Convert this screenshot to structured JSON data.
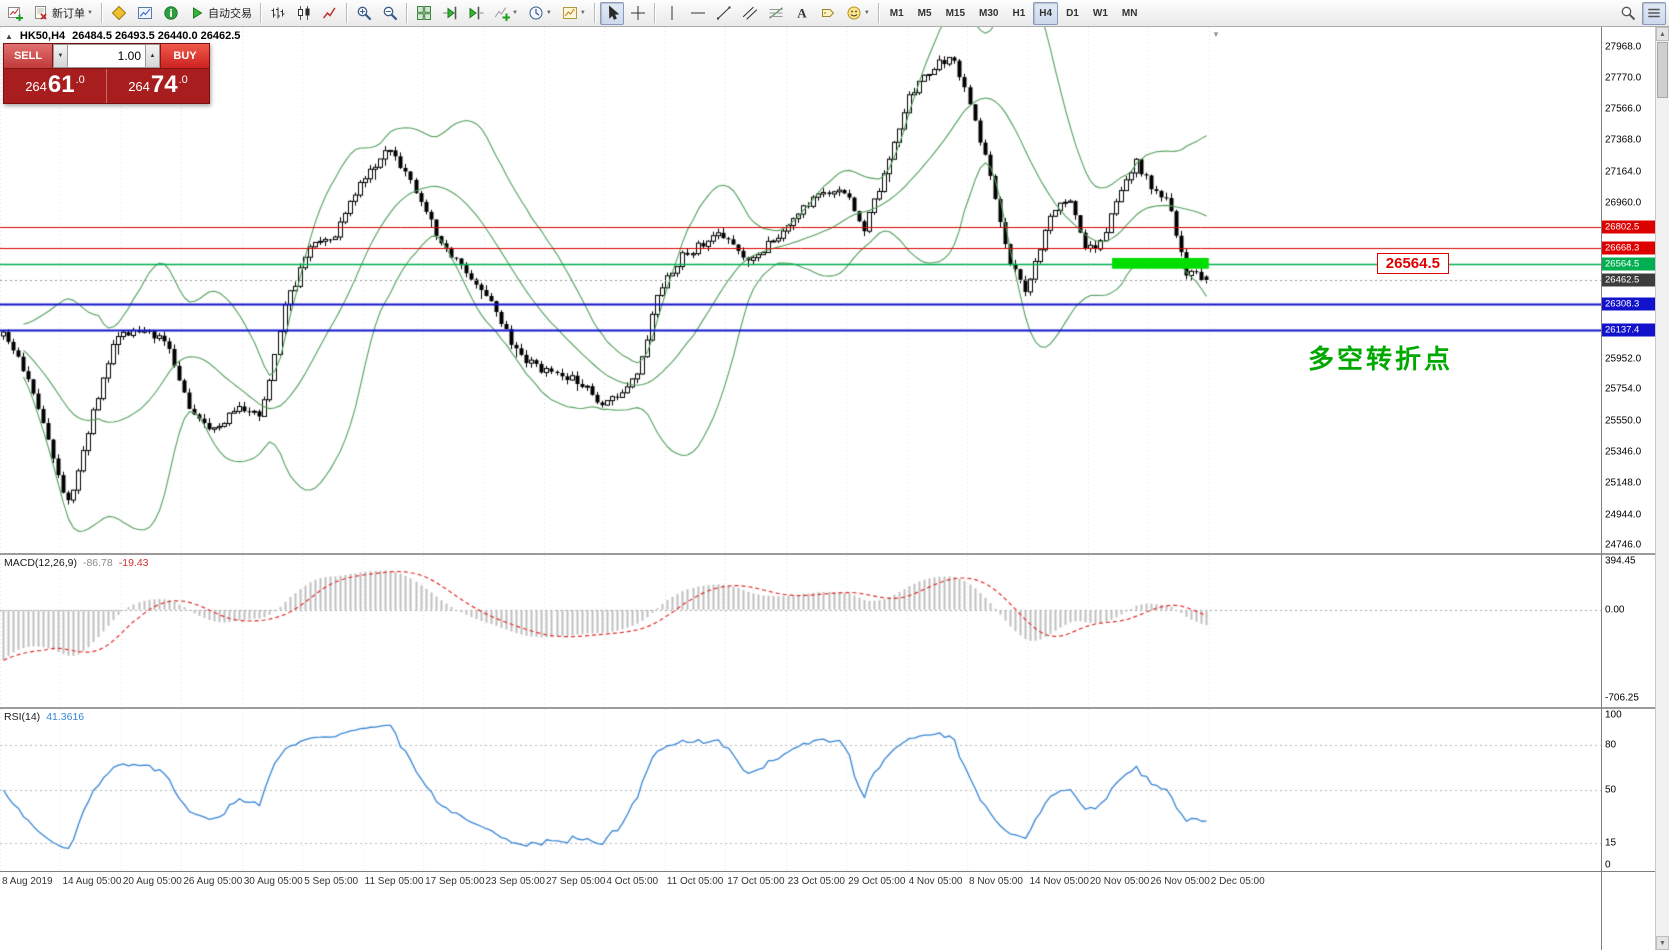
{
  "colors": {
    "hline_red": "#dd0000",
    "hline_green": "#00b050",
    "hline_blue": "#1212cc",
    "current_tag": "#3c3c3c",
    "bollinger": "#55a05f",
    "highlight": "#00de00",
    "macd_hist": "#bfbfbf",
    "macd_signal": "#e03030",
    "rsi_line": "#3a86d4",
    "candle_up": "#ffffff",
    "candle_down": "#000000",
    "candle_outline": "#000000",
    "callout": "#e00000",
    "annotation_green": "#00a800"
  },
  "toolbar": {
    "timeframes": [
      "M1",
      "M5",
      "M15",
      "M30",
      "H1",
      "H4",
      "D1",
      "W1",
      "MN"
    ],
    "active_timeframe": "H4",
    "items": [
      {
        "type": "icon",
        "name": "new-chart-button",
        "icon": "newchart"
      },
      {
        "type": "button",
        "name": "new-order-button",
        "icon": "neworder",
        "label": "新订单",
        "dropdown": true
      },
      {
        "type": "sep"
      },
      {
        "type": "icon",
        "name": "profiles-button",
        "icon": "profiles"
      },
      {
        "type": "icon",
        "name": "market-watch-button",
        "icon": "marketwatch"
      },
      {
        "type": "icon",
        "name": "data-window-button",
        "icon": "info"
      },
      {
        "type": "button",
        "name": "autotrading-button",
        "icon": "play",
        "label": "自动交易"
      },
      {
        "type": "sep"
      },
      {
        "type": "icon",
        "name": "bar-chart-button",
        "icon": "bars"
      },
      {
        "type": "icon",
        "name": "candlestick-chart-button",
        "icon": "candles"
      },
      {
        "type": "icon",
        "name": "line-chart-button",
        "icon": "linechart"
      },
      {
        "type": "sep"
      },
      {
        "type": "icon",
        "name": "zoom-in-button",
        "icon": "zoomin"
      },
      {
        "type": "icon",
        "name": "zoom-out-button",
        "icon": "zoomout"
      },
      {
        "type": "sep"
      },
      {
        "type": "icon",
        "name": "tile-windows-button",
        "icon": "tile"
      },
      {
        "type": "icon",
        "name": "auto-scroll-button",
        "icon": "autoscroll"
      },
      {
        "type": "icon",
        "name": "chart-shift-button",
        "icon": "shift"
      },
      {
        "type": "icon",
        "name": "indicators-button",
        "icon": "indicators",
        "dropdown": true
      },
      {
        "type": "icon",
        "name": "periods-button",
        "icon": "clock",
        "dropdown": true
      },
      {
        "type": "icon",
        "name": "templates-button",
        "icon": "template",
        "dropdown": true
      },
      {
        "type": "sep"
      },
      {
        "type": "icon",
        "name": "cursor-tool-button",
        "icon": "cursor",
        "active": true
      },
      {
        "type": "icon",
        "name": "crosshair-tool-button",
        "icon": "crosshair"
      },
      {
        "type": "sep"
      },
      {
        "type": "icon",
        "name": "vertical-line-tool-button",
        "icon": "vline"
      },
      {
        "type": "icon",
        "name": "horizontal-line-tool-button",
        "icon": "hline"
      },
      {
        "type": "icon",
        "name": "trendline-tool-button",
        "icon": "trend"
      },
      {
        "type": "icon",
        "name": "channel-tool-button",
        "icon": "channel"
      },
      {
        "type": "icon",
        "name": "fibonacci-tool-button",
        "icon": "fibo"
      },
      {
        "type": "icon",
        "name": "text-tool-button",
        "icon": "text"
      },
      {
        "type": "icon",
        "name": "label-tool-button",
        "icon": "label"
      },
      {
        "type": "icon",
        "name": "shapes-tool-button",
        "icon": "shapes",
        "dropdown": true
      },
      {
        "type": "sep"
      }
    ],
    "right_items": [
      {
        "type": "icon",
        "name": "search-button",
        "icon": "search"
      },
      {
        "type": "icon",
        "name": "customize-toolbar-button",
        "icon": "menu",
        "active": true
      }
    ]
  },
  "one_click": {
    "sell_label": "SELL",
    "buy_label": "BUY",
    "volume": "1.00",
    "sell_price": {
      "full": "26461.0",
      "prefix": "264",
      "big": "61",
      "suffix": ".0"
    },
    "buy_price": {
      "full": "26474.0",
      "prefix": "264",
      "big": "74",
      "suffix": ".0"
    }
  },
  "price_pane": {
    "header_symbol": "HK50,H4",
    "header_ohlc": "26484.5 26493.5 26440.0 26462.5",
    "callout": "26564.5",
    "annotation": "多空转折点"
  },
  "time_axis": [
    "8 Aug 2019",
    "14 Aug 05:00",
    "20 Aug 05:00",
    "26 Aug 05:00",
    "30 Aug 05:00",
    "5 Sep 05:00",
    "11 Sep 05:00",
    "17 Sep 05:00",
    "23 Sep 05:00",
    "27 Sep 05:00",
    "4 Oct 05:00",
    "11 Oct 05:00",
    "17 Oct 05:00",
    "23 Oct 05:00",
    "29 Oct 05:00",
    "4 Nov 05:00",
    "8 Nov 05:00",
    "14 Nov 05:00",
    "20 Nov 05:00",
    "26 Nov 05:00",
    "2 Dec 05:00"
  ],
  "chart_data": [
    {
      "type": "candlestick",
      "title": "HK50,H4",
      "open": 26484.5,
      "high": 26493.5,
      "low": 26440.0,
      "close": 26462.5,
      "y_ticks": [
        "27968.0",
        "27770.0",
        "27566.0",
        "27368.0",
        "27164.0",
        "26960.0",
        "25952.0",
        "25754.0",
        "25550.0",
        "25346.0",
        "25148.0",
        "24944.0",
        "24746.0"
      ],
      "y_range": [
        24695,
        28100
      ],
      "plot_width_frac": 0.755,
      "candle_count": 240,
      "overlays": [
        "Bollinger Bands(20,2) green"
      ],
      "price_anchors": [
        [
          0.0,
          26100
        ],
        [
          0.02,
          25850
        ],
        [
          0.04,
          25350
        ],
        [
          0.055,
          25000
        ],
        [
          0.075,
          25600
        ],
        [
          0.095,
          26100
        ],
        [
          0.115,
          26150
        ],
        [
          0.135,
          26050
        ],
        [
          0.155,
          25650
        ],
        [
          0.175,
          25480
        ],
        [
          0.195,
          25650
        ],
        [
          0.215,
          25580
        ],
        [
          0.235,
          26300
        ],
        [
          0.255,
          26680
        ],
        [
          0.275,
          26730
        ],
        [
          0.295,
          27060
        ],
        [
          0.32,
          27330
        ],
        [
          0.34,
          27100
        ],
        [
          0.36,
          26760
        ],
        [
          0.385,
          26500
        ],
        [
          0.405,
          26320
        ],
        [
          0.43,
          25960
        ],
        [
          0.455,
          25860
        ],
        [
          0.48,
          25800
        ],
        [
          0.5,
          25650
        ],
        [
          0.528,
          25850
        ],
        [
          0.545,
          26380
        ],
        [
          0.565,
          26620
        ],
        [
          0.595,
          26760
        ],
        [
          0.62,
          26560
        ],
        [
          0.65,
          26800
        ],
        [
          0.675,
          27000
        ],
        [
          0.698,
          27060
        ],
        [
          0.715,
          26790
        ],
        [
          0.735,
          27180
        ],
        [
          0.752,
          27640
        ],
        [
          0.775,
          27850
        ],
        [
          0.79,
          27900
        ],
        [
          0.806,
          27520
        ],
        [
          0.82,
          27160
        ],
        [
          0.835,
          26620
        ],
        [
          0.85,
          26360
        ],
        [
          0.87,
          26880
        ],
        [
          0.887,
          26990
        ],
        [
          0.9,
          26660
        ],
        [
          0.912,
          26700
        ],
        [
          0.928,
          27040
        ],
        [
          0.941,
          27230
        ],
        [
          0.954,
          27060
        ],
        [
          0.97,
          26940
        ],
        [
          0.982,
          26520
        ],
        [
          1.0,
          26462.5
        ]
      ],
      "hlines": [
        {
          "price": 26802.5,
          "label": "26802.5",
          "color": "red",
          "width": 1
        },
        {
          "price": 26668.3,
          "label": "26668.3",
          "color": "red",
          "width": 1
        },
        {
          "price": 26564.5,
          "label": "26564.5",
          "color": "green",
          "width": 1.5
        },
        {
          "price": 26308.3,
          "label": "26308.3",
          "color": "blue",
          "width": 2
        },
        {
          "price": 26137.4,
          "label": "26137.4",
          "color": "blue",
          "width": 2
        }
      ],
      "current_price": {
        "value": 26462.5,
        "label": "26462.5"
      },
      "highlight_zone": {
        "x_start_frac": 0.92,
        "x_end_frac": 1.0,
        "price_top": 26605,
        "price_bottom": 26535
      }
    },
    {
      "type": "macd",
      "title": "MACD(12,26,9)",
      "macd": -86.78,
      "signal": -19.43,
      "y_ticks": [
        "394.45",
        "0.00",
        "-706.25"
      ],
      "y_range": [
        -780,
        440
      ]
    },
    {
      "type": "rsi",
      "title": "RSI(14)",
      "value": "41.3616",
      "current": 41.3616,
      "levels": [
        80,
        50,
        15
      ],
      "y_ticks": [
        "100",
        "80",
        "50",
        "15",
        "0"
      ],
      "y_range": [
        0,
        100
      ]
    }
  ]
}
